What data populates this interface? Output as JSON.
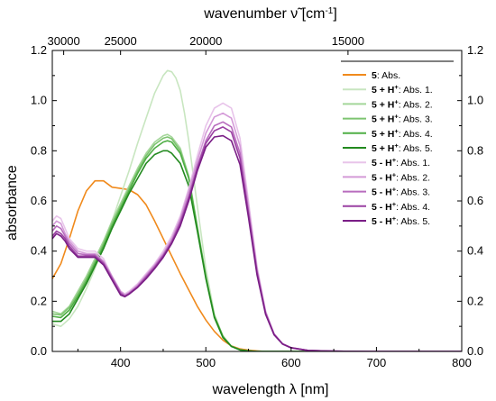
{
  "chart_data": {
    "type": "line",
    "xlabel": "wavelength λ [nm]",
    "ylabel": "absorbance",
    "top_xlabel_main": "wavenumber ν̃ [cm",
    "top_xlabel_sup": "-1",
    "top_xlabel_end": "]",
    "xlim": [
      320,
      800
    ],
    "ylim": [
      0.0,
      1.2
    ],
    "x_ticks": [
      "400",
      "500",
      "600",
      "700",
      "800"
    ],
    "y_ticks": [
      "0.0",
      "0.2",
      "0.4",
      "0.6",
      "0.8",
      "1.0",
      "1.2"
    ],
    "top_ticks": [
      {
        "value": 30000,
        "label": "30000"
      },
      {
        "value": 25000,
        "label": "25000"
      },
      {
        "value": 20000,
        "label": "20000"
      },
      {
        "value": 15000,
        "label": "15000"
      }
    ],
    "legend_position": "top-right",
    "series": [
      {
        "prefix": "5",
        "suffix": ": Abs.",
        "color": "#f08a1c",
        "x": [
          320,
          330,
          340,
          350,
          360,
          370,
          380,
          390,
          400,
          410,
          420,
          430,
          440,
          450,
          460,
          470,
          480,
          490,
          500,
          510,
          520,
          530,
          540,
          550,
          560,
          570,
          580,
          600,
          650,
          700,
          800
        ],
        "y": [
          0.29,
          0.35,
          0.45,
          0.56,
          0.64,
          0.68,
          0.68,
          0.655,
          0.65,
          0.645,
          0.625,
          0.585,
          0.52,
          0.45,
          0.38,
          0.31,
          0.245,
          0.18,
          0.125,
          0.08,
          0.045,
          0.022,
          0.01,
          0.005,
          0.002,
          0.0,
          0.0,
          0.0,
          0.0,
          0.0,
          0.0
        ]
      },
      {
        "prefix": "5 + H",
        "sup": "+",
        "suffix": ": Abs. 1.",
        "color": "#c8e6c0",
        "x": [
          320,
          330,
          340,
          350,
          360,
          370,
          380,
          390,
          400,
          410,
          420,
          430,
          440,
          450,
          455,
          460,
          465,
          470,
          475,
          480,
          490,
          500,
          510,
          520,
          530,
          540,
          550,
          560,
          580,
          600,
          700,
          800
        ],
        "y": [
          0.11,
          0.1,
          0.13,
          0.18,
          0.25,
          0.33,
          0.42,
          0.52,
          0.62,
          0.72,
          0.83,
          0.93,
          1.03,
          1.1,
          1.12,
          1.115,
          1.09,
          1.04,
          0.95,
          0.84,
          0.58,
          0.33,
          0.15,
          0.06,
          0.02,
          0.006,
          0.002,
          0.0,
          0.0,
          0.0,
          0.0,
          0.0
        ]
      },
      {
        "prefix": "5 + H",
        "sup": "+",
        "suffix": ": Abs. 2.",
        "color": "#a4d69a",
        "x": [
          320,
          330,
          340,
          350,
          360,
          370,
          380,
          390,
          400,
          410,
          420,
          430,
          440,
          450,
          455,
          460,
          470,
          480,
          490,
          500,
          510,
          520,
          530,
          540,
          550,
          560,
          580,
          600,
          700,
          800
        ],
        "y": [
          0.16,
          0.15,
          0.18,
          0.24,
          0.3,
          0.37,
          0.44,
          0.52,
          0.59,
          0.66,
          0.73,
          0.79,
          0.835,
          0.86,
          0.865,
          0.855,
          0.81,
          0.7,
          0.5,
          0.3,
          0.14,
          0.06,
          0.02,
          0.006,
          0.002,
          0.0,
          0.0,
          0.0,
          0.0,
          0.0
        ]
      },
      {
        "prefix": "5 + H",
        "sup": "+",
        "suffix": ": Abs. 3.",
        "color": "#7dc470",
        "x": [
          320,
          330,
          340,
          350,
          360,
          370,
          380,
          390,
          400,
          410,
          420,
          430,
          440,
          450,
          455,
          460,
          470,
          480,
          490,
          500,
          510,
          520,
          530,
          540,
          550,
          560,
          580,
          600,
          700,
          800
        ],
        "y": [
          0.15,
          0.145,
          0.175,
          0.23,
          0.29,
          0.36,
          0.43,
          0.51,
          0.58,
          0.65,
          0.72,
          0.78,
          0.825,
          0.85,
          0.855,
          0.848,
          0.8,
          0.695,
          0.495,
          0.3,
          0.14,
          0.06,
          0.02,
          0.006,
          0.002,
          0.0,
          0.0,
          0.0,
          0.0,
          0.0
        ]
      },
      {
        "prefix": "5 + H",
        "sup": "+",
        "suffix": ": Abs. 4.",
        "color": "#4fae45",
        "x": [
          320,
          330,
          340,
          350,
          360,
          370,
          380,
          390,
          400,
          410,
          420,
          430,
          440,
          450,
          455,
          460,
          470,
          480,
          490,
          500,
          510,
          520,
          530,
          540,
          550,
          560,
          580,
          600,
          700,
          800
        ],
        "y": [
          0.14,
          0.135,
          0.165,
          0.22,
          0.28,
          0.35,
          0.42,
          0.5,
          0.57,
          0.64,
          0.71,
          0.77,
          0.81,
          0.835,
          0.84,
          0.835,
          0.79,
          0.69,
          0.49,
          0.295,
          0.14,
          0.06,
          0.02,
          0.006,
          0.002,
          0.0,
          0.0,
          0.0,
          0.0,
          0.0
        ]
      },
      {
        "prefix": "5 + H",
        "sup": "+",
        "suffix": ": Abs. 5.",
        "color": "#238a1f",
        "x": [
          320,
          330,
          340,
          350,
          360,
          370,
          380,
          390,
          400,
          410,
          420,
          430,
          440,
          450,
          455,
          460,
          470,
          480,
          490,
          500,
          510,
          520,
          530,
          540,
          550,
          560,
          580,
          600,
          700,
          800
        ],
        "y": [
          0.12,
          0.12,
          0.15,
          0.21,
          0.27,
          0.34,
          0.41,
          0.49,
          0.56,
          0.63,
          0.69,
          0.75,
          0.785,
          0.8,
          0.8,
          0.79,
          0.75,
          0.66,
          0.48,
          0.29,
          0.135,
          0.055,
          0.02,
          0.006,
          0.002,
          0.0,
          0.0,
          0.0,
          0.0,
          0.0
        ]
      },
      {
        "prefix": "5 - H",
        "sup": "+",
        "suffix": ": Abs. 1.",
        "color": "#e8c4ea",
        "x": [
          320,
          325,
          330,
          335,
          340,
          350,
          360,
          370,
          380,
          390,
          400,
          405,
          410,
          420,
          430,
          440,
          450,
          460,
          470,
          480,
          490,
          500,
          510,
          520,
          530,
          540,
          550,
          560,
          570,
          580,
          590,
          600,
          620,
          650,
          700,
          800
        ],
        "y": [
          0.52,
          0.54,
          0.53,
          0.49,
          0.45,
          0.41,
          0.4,
          0.4,
          0.37,
          0.3,
          0.24,
          0.23,
          0.24,
          0.27,
          0.31,
          0.35,
          0.4,
          0.46,
          0.54,
          0.65,
          0.78,
          0.9,
          0.97,
          0.99,
          0.97,
          0.85,
          0.6,
          0.34,
          0.16,
          0.07,
          0.03,
          0.015,
          0.004,
          0.001,
          0.0,
          0.0
        ]
      },
      {
        "prefix": "5 - H",
        "sup": "+",
        "suffix": ": Abs. 2.",
        "color": "#d49ad8",
        "x": [
          320,
          325,
          330,
          335,
          340,
          350,
          360,
          370,
          380,
          390,
          400,
          405,
          410,
          420,
          430,
          440,
          450,
          460,
          470,
          480,
          490,
          500,
          510,
          520,
          530,
          540,
          550,
          560,
          570,
          580,
          590,
          600,
          620,
          650,
          700,
          800
        ],
        "y": [
          0.5,
          0.52,
          0.51,
          0.47,
          0.44,
          0.4,
          0.39,
          0.39,
          0.36,
          0.3,
          0.24,
          0.225,
          0.235,
          0.265,
          0.305,
          0.345,
          0.39,
          0.45,
          0.53,
          0.64,
          0.76,
          0.87,
          0.935,
          0.95,
          0.93,
          0.82,
          0.58,
          0.33,
          0.16,
          0.07,
          0.03,
          0.015,
          0.004,
          0.001,
          0.0,
          0.0
        ]
      },
      {
        "prefix": "5 - H",
        "sup": "+",
        "suffix": ": Abs. 3.",
        "color": "#b86cbe",
        "x": [
          320,
          325,
          330,
          335,
          340,
          350,
          360,
          370,
          380,
          390,
          400,
          405,
          410,
          420,
          430,
          440,
          450,
          460,
          470,
          480,
          490,
          500,
          510,
          520,
          530,
          540,
          550,
          560,
          570,
          580,
          590,
          600,
          620,
          650,
          700,
          800
        ],
        "y": [
          0.48,
          0.5,
          0.49,
          0.46,
          0.43,
          0.39,
          0.385,
          0.385,
          0.355,
          0.295,
          0.235,
          0.222,
          0.232,
          0.26,
          0.3,
          0.34,
          0.385,
          0.44,
          0.52,
          0.62,
          0.74,
          0.84,
          0.9,
          0.915,
          0.895,
          0.79,
          0.56,
          0.32,
          0.155,
          0.07,
          0.03,
          0.015,
          0.004,
          0.001,
          0.0,
          0.0
        ]
      },
      {
        "prefix": "5 - H",
        "sup": "+",
        "suffix": ": Abs. 4.",
        "color": "#9a40a2",
        "x": [
          320,
          325,
          330,
          335,
          340,
          350,
          360,
          370,
          380,
          390,
          400,
          405,
          410,
          420,
          430,
          440,
          450,
          460,
          470,
          480,
          490,
          500,
          510,
          520,
          530,
          540,
          550,
          560,
          570,
          580,
          590,
          600,
          620,
          650,
          700,
          800
        ],
        "y": [
          0.46,
          0.48,
          0.47,
          0.45,
          0.42,
          0.38,
          0.38,
          0.38,
          0.35,
          0.29,
          0.23,
          0.22,
          0.23,
          0.258,
          0.295,
          0.335,
          0.38,
          0.435,
          0.51,
          0.61,
          0.73,
          0.83,
          0.88,
          0.895,
          0.875,
          0.77,
          0.55,
          0.315,
          0.15,
          0.068,
          0.03,
          0.015,
          0.004,
          0.001,
          0.0,
          0.0
        ]
      },
      {
        "prefix": "5 - H",
        "sup": "+",
        "suffix": ": Abs. 5.",
        "color": "#7a1e86",
        "x": [
          320,
          325,
          330,
          335,
          340,
          350,
          360,
          370,
          380,
          390,
          400,
          405,
          410,
          420,
          430,
          440,
          450,
          460,
          470,
          480,
          490,
          500,
          510,
          520,
          530,
          540,
          550,
          560,
          570,
          580,
          590,
          600,
          620,
          650,
          700,
          800
        ],
        "y": [
          0.45,
          0.47,
          0.46,
          0.44,
          0.41,
          0.375,
          0.375,
          0.375,
          0.345,
          0.285,
          0.225,
          0.218,
          0.228,
          0.255,
          0.29,
          0.33,
          0.375,
          0.43,
          0.5,
          0.6,
          0.72,
          0.815,
          0.855,
          0.86,
          0.84,
          0.745,
          0.535,
          0.305,
          0.148,
          0.066,
          0.029,
          0.014,
          0.004,
          0.001,
          0.0,
          0.0
        ]
      }
    ]
  }
}
